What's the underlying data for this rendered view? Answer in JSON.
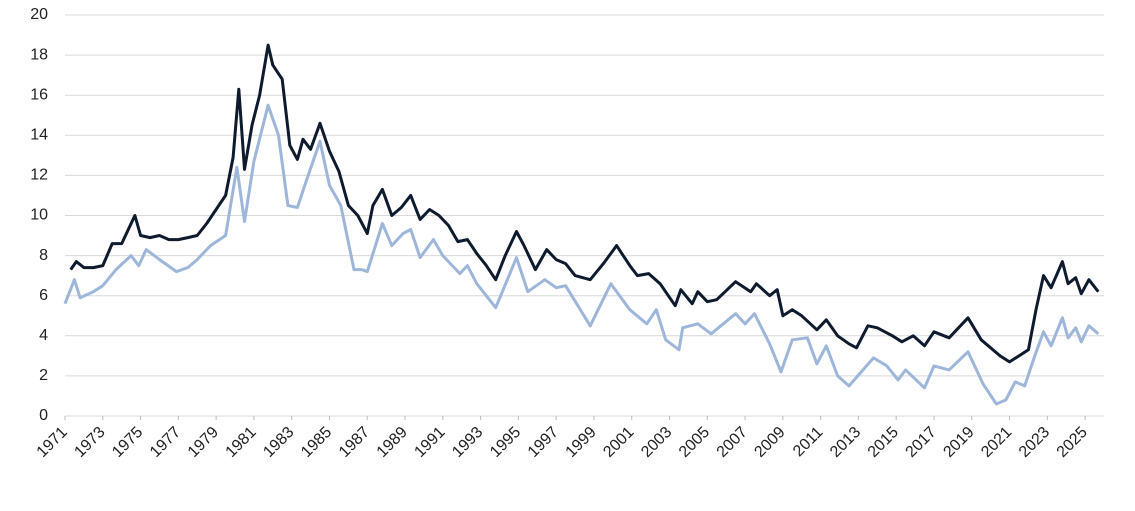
{
  "chart_data": {
    "type": "line",
    "xlim": [
      1971,
      2026
    ],
    "xticks": [
      1971,
      1973,
      1975,
      1977,
      1979,
      1981,
      1983,
      1985,
      1987,
      1989,
      1991,
      1993,
      1995,
      1997,
      1999,
      2001,
      2003,
      2005,
      2007,
      2009,
      2011,
      2013,
      2015,
      2017,
      2019,
      2021,
      2023,
      2025
    ],
    "ylim": [
      0,
      20
    ],
    "yticks": [
      0,
      2,
      4,
      6,
      8,
      10,
      12,
      14,
      16,
      18,
      20
    ],
    "grid": true,
    "series": [
      {
        "color": "#9db6da",
        "x": [
          1971,
          1971.5,
          1971.8,
          1972.5,
          1973,
          1973.7,
          1974.5,
          1974.9,
          1975.3,
          1976,
          1976.9,
          1977.5,
          1978,
          1978.7,
          1979.5,
          1980.1,
          1980.5,
          1981,
          1981.75,
          1982.3,
          1982.8,
          1983.3,
          1983.8,
          1984.5,
          1985,
          1985.6,
          1986.3,
          1986.7,
          1987,
          1987.8,
          1988.3,
          1988.9,
          1989.3,
          1989.8,
          1990.5,
          1991,
          1991.9,
          1992.3,
          1992.8,
          1993.8,
          1994.9,
          1995.5,
          1996.4,
          1997,
          1997.5,
          1998.8,
          1999.9,
          2000.9,
          2001.8,
          2002.3,
          2002.8,
          2003.5,
          2003.7,
          2004.5,
          2005.2,
          2006.5,
          2007,
          2007.5,
          2008.3,
          2008.9,
          2009.5,
          2010.3,
          2010.8,
          2011.3,
          2011.9,
          2012.5,
          2013.8,
          2014.5,
          2015.1,
          2015.5,
          2016.5,
          2017,
          2017.8,
          2018.8,
          2019.6,
          2020.3,
          2020.8,
          2021.3,
          2021.8,
          2022.3,
          2022.8,
          2023.2,
          2023.8,
          2024.1,
          2024.5,
          2024.8,
          2025.2,
          2025.7
        ],
        "values": [
          5.6,
          6.8,
          5.9,
          6.2,
          6.5,
          7.3,
          8.0,
          7.5,
          8.3,
          7.8,
          7.2,
          7.4,
          7.8,
          8.5,
          9.0,
          12.4,
          9.7,
          12.7,
          15.5,
          14.0,
          10.5,
          10.4,
          11.8,
          13.7,
          11.5,
          10.5,
          7.3,
          7.3,
          7.2,
          9.6,
          8.5,
          9.1,
          9.3,
          7.9,
          8.8,
          8.0,
          7.1,
          7.5,
          6.6,
          5.4,
          7.9,
          6.2,
          6.8,
          6.4,
          6.5,
          4.5,
          6.6,
          5.3,
          4.6,
          5.3,
          3.8,
          3.3,
          4.4,
          4.6,
          4.1,
          5.1,
          4.6,
          5.1,
          3.6,
          2.2,
          3.8,
          3.9,
          2.6,
          3.5,
          2.0,
          1.5,
          2.9,
          2.5,
          1.8,
          2.3,
          1.4,
          2.5,
          2.3,
          3.2,
          1.6,
          0.6,
          0.8,
          1.7,
          1.5,
          2.9,
          4.2,
          3.5,
          4.9,
          3.9,
          4.4,
          3.7,
          4.5,
          4.1
        ]
      },
      {
        "color": "#0e1a2d",
        "x": [
          1971.3,
          1971.6,
          1972,
          1972.5,
          1973,
          1973.5,
          1974,
          1974.7,
          1975,
          1975.5,
          1976,
          1976.5,
          1977,
          1977.5,
          1978,
          1978.5,
          1979,
          1979.5,
          1979.9,
          1980.2,
          1980.5,
          1980.9,
          1981.3,
          1981.75,
          1982,
          1982.5,
          1982.9,
          1983.3,
          1983.6,
          1984,
          1984.5,
          1985,
          1985.5,
          1986,
          1986.5,
          1987,
          1987.3,
          1987.8,
          1988.3,
          1988.8,
          1989.3,
          1989.8,
          1990.3,
          1990.8,
          1991.3,
          1991.8,
          1992.3,
          1992.8,
          1993.3,
          1993.8,
          1994.3,
          1994.9,
          1995.3,
          1995.9,
          1996.5,
          1997,
          1997.5,
          1998,
          1998.8,
          1999.5,
          2000.2,
          2000.9,
          2001.3,
          2001.9,
          2002.5,
          2003.3,
          2003.6,
          2004.2,
          2004.5,
          2005,
          2005.5,
          2006.5,
          2007.3,
          2007.6,
          2008.3,
          2008.7,
          2009,
          2009.5,
          2010,
          2010.8,
          2011.3,
          2011.9,
          2012.5,
          2012.9,
          2013.5,
          2014,
          2014.8,
          2015.3,
          2015.9,
          2016.5,
          2017,
          2017.8,
          2018.8,
          2019.5,
          2020.5,
          2021,
          2021.5,
          2022,
          2022.4,
          2022.8,
          2023.2,
          2023.8,
          2024.1,
          2024.5,
          2024.8,
          2025.2,
          2025.7
        ],
        "values": [
          7.3,
          7.7,
          7.4,
          7.4,
          7.5,
          8.6,
          8.6,
          10.0,
          9.0,
          8.9,
          9.0,
          8.8,
          8.8,
          8.9,
          9.0,
          9.6,
          10.3,
          11.0,
          12.9,
          16.3,
          12.3,
          14.5,
          16.0,
          18.5,
          17.5,
          16.8,
          13.5,
          12.8,
          13.8,
          13.3,
          14.6,
          13.2,
          12.2,
          10.5,
          10.0,
          9.1,
          10.5,
          11.3,
          10.0,
          10.4,
          11.0,
          9.8,
          10.3,
          10.0,
          9.5,
          8.7,
          8.8,
          8.1,
          7.5,
          6.8,
          8.0,
          9.2,
          8.5,
          7.3,
          8.3,
          7.8,
          7.6,
          7.0,
          6.8,
          7.6,
          8.5,
          7.5,
          7.0,
          7.1,
          6.6,
          5.5,
          6.3,
          5.6,
          6.2,
          5.7,
          5.8,
          6.7,
          6.2,
          6.6,
          6.0,
          6.3,
          5.0,
          5.3,
          5.0,
          4.3,
          4.8,
          4.0,
          3.6,
          3.4,
          4.5,
          4.4,
          4.0,
          3.7,
          4.0,
          3.5,
          4.2,
          3.9,
          4.9,
          3.8,
          3.0,
          2.7,
          3.0,
          3.3,
          5.3,
          7.0,
          6.4,
          7.7,
          6.6,
          6.9,
          6.1,
          6.8,
          6.2
        ]
      }
    ]
  }
}
